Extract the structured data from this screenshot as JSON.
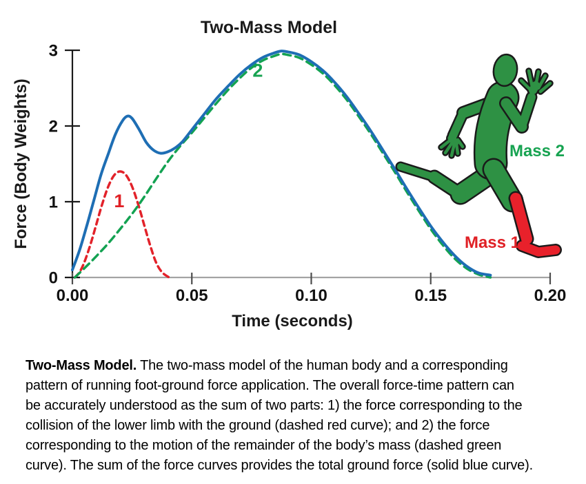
{
  "page": {
    "background": "#ffffff"
  },
  "chart_data": {
    "type": "line",
    "title": "Two-Mass Model",
    "xlabel": "Time (seconds)",
    "ylabel": "Force (Body Weights)",
    "xlim": [
      0,
      0.2
    ],
    "ylim": [
      0,
      3
    ],
    "xticks": [
      0,
      0.05,
      0.1,
      0.15,
      0.2
    ],
    "xtick_labels": [
      "0.00",
      "0.05",
      "0.10",
      "0.15",
      "0.20"
    ],
    "yticks": [
      0,
      1,
      2,
      3
    ],
    "ytick_labels": [
      "0",
      "1",
      "2",
      "3"
    ],
    "grid": false,
    "axis_color": "#1a1a1a",
    "x_axis_line_color": "#a3a3a3",
    "series": [
      {
        "id": "mass1",
        "name": "Mass 1 lower-limb collision force (dashed red curve)",
        "style": "dashed",
        "dash": "8 6",
        "width": 3.5,
        "color": "#e2222a",
        "points": [
          [
            0.001,
            0
          ],
          [
            0.003,
            0.07
          ],
          [
            0.005,
            0.2
          ],
          [
            0.0075,
            0.43
          ],
          [
            0.01,
            0.7
          ],
          [
            0.0125,
            0.97
          ],
          [
            0.015,
            1.2
          ],
          [
            0.0175,
            1.35
          ],
          [
            0.02,
            1.4
          ],
          [
            0.0225,
            1.35
          ],
          [
            0.025,
            1.2
          ],
          [
            0.0275,
            0.97
          ],
          [
            0.03,
            0.7
          ],
          [
            0.0325,
            0.43
          ],
          [
            0.035,
            0.2
          ],
          [
            0.0375,
            0.07
          ],
          [
            0.0405,
            0
          ]
        ]
      },
      {
        "id": "mass2",
        "name": "Mass 2 remainder-of-body force (dashed green curve)",
        "style": "dashed",
        "dash": "11 7",
        "width": 3.5,
        "color": "#13a252",
        "points": [
          [
            0.001,
            0
          ],
          [
            0.005,
            0.12
          ],
          [
            0.01,
            0.28
          ],
          [
            0.015,
            0.45
          ],
          [
            0.02,
            0.64
          ],
          [
            0.025,
            0.84
          ],
          [
            0.03,
            1.06
          ],
          [
            0.035,
            1.3
          ],
          [
            0.04,
            1.53
          ],
          [
            0.045,
            1.73
          ],
          [
            0.05,
            1.91
          ],
          [
            0.055,
            2.1
          ],
          [
            0.06,
            2.29
          ],
          [
            0.065,
            2.47
          ],
          [
            0.07,
            2.63
          ],
          [
            0.075,
            2.77
          ],
          [
            0.08,
            2.87
          ],
          [
            0.085,
            2.93
          ],
          [
            0.0875,
            2.95
          ],
          [
            0.09,
            2.94
          ],
          [
            0.095,
            2.9
          ],
          [
            0.1,
            2.81
          ],
          [
            0.105,
            2.69
          ],
          [
            0.11,
            2.53
          ],
          [
            0.115,
            2.34
          ],
          [
            0.12,
            2.12
          ],
          [
            0.125,
            1.89
          ],
          [
            0.13,
            1.64
          ],
          [
            0.135,
            1.39
          ],
          [
            0.14,
            1.13
          ],
          [
            0.145,
            0.88
          ],
          [
            0.15,
            0.64
          ],
          [
            0.155,
            0.43
          ],
          [
            0.16,
            0.25
          ],
          [
            0.165,
            0.12
          ],
          [
            0.17,
            0.04
          ],
          [
            0.175,
            0
          ]
        ]
      },
      {
        "id": "total",
        "name": "Total ground force (solid blue curve)",
        "style": "solid",
        "dash": "",
        "width": 4,
        "color": "#1e6eb4",
        "points": [
          [
            0,
            0.1
          ],
          [
            0.003,
            0.36
          ],
          [
            0.006,
            0.68
          ],
          [
            0.009,
            1.02
          ],
          [
            0.012,
            1.36
          ],
          [
            0.015,
            1.63
          ],
          [
            0.018,
            1.89
          ],
          [
            0.021,
            2.07
          ],
          [
            0.023,
            2.13
          ],
          [
            0.025,
            2.1
          ],
          [
            0.028,
            1.95
          ],
          [
            0.031,
            1.78
          ],
          [
            0.034,
            1.68
          ],
          [
            0.037,
            1.64
          ],
          [
            0.04,
            1.66
          ],
          [
            0.043,
            1.71
          ],
          [
            0.046,
            1.79
          ],
          [
            0.05,
            1.95
          ],
          [
            0.055,
            2.15
          ],
          [
            0.06,
            2.35
          ],
          [
            0.065,
            2.52
          ],
          [
            0.07,
            2.68
          ],
          [
            0.075,
            2.81
          ],
          [
            0.08,
            2.91
          ],
          [
            0.085,
            2.97
          ],
          [
            0.0875,
            2.99
          ],
          [
            0.09,
            2.98
          ],
          [
            0.095,
            2.94
          ],
          [
            0.1,
            2.85
          ],
          [
            0.105,
            2.73
          ],
          [
            0.11,
            2.57
          ],
          [
            0.115,
            2.38
          ],
          [
            0.12,
            2.16
          ],
          [
            0.125,
            1.93
          ],
          [
            0.13,
            1.68
          ],
          [
            0.135,
            1.43
          ],
          [
            0.14,
            1.17
          ],
          [
            0.145,
            0.92
          ],
          [
            0.15,
            0.68
          ],
          [
            0.155,
            0.47
          ],
          [
            0.16,
            0.29
          ],
          [
            0.165,
            0.15
          ],
          [
            0.17,
            0.06
          ],
          [
            0.175,
            0.03
          ]
        ]
      }
    ],
    "curve_labels": [
      {
        "text": "1",
        "t": 0.0196,
        "f": 1.01,
        "color": "#e02025"
      },
      {
        "text": "2",
        "t": 0.0776,
        "f": 2.73,
        "color": "#17a351"
      }
    ]
  },
  "figure": {
    "mass2_label": "Mass 2",
    "mass1_label": "Mass 1",
    "mass2_color": "#17a351",
    "mass1_color": "#e02025",
    "body_color": "#2e9144",
    "lower_leg_color": "#e8212b",
    "outline_color": "#1a1a1a"
  },
  "caption": {
    "lines": [
      {
        "bold": "Two-Mass Model.",
        "text": " The two-mass model of the human body and a corresponding"
      },
      {
        "bold": "",
        "text": "pattern of running foot-ground force application. The overall force-time pattern can"
      },
      {
        "bold": "",
        "text": "be accurately understood as the sum of two parts: 1) the force corresponding to the"
      },
      {
        "bold": "",
        "text": "collision of the lower limb with the ground (dashed red curve); and 2) the force"
      },
      {
        "bold": "",
        "text": "corresponding to the motion of the remainder of the body’s mass (dashed green"
      },
      {
        "bold": "",
        "text": "curve).  The sum of the force curves provides the total ground force (solid blue curve)."
      }
    ]
  }
}
